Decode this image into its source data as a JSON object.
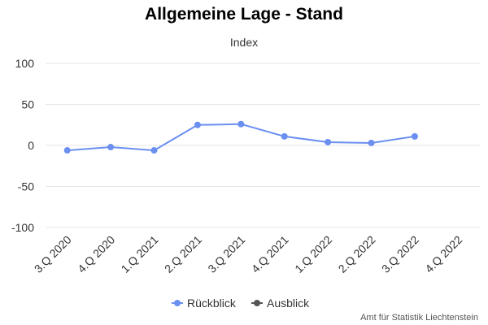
{
  "chart_data": {
    "type": "line",
    "title": "Allgemeine Lage - Stand",
    "subtitle": "Index",
    "categories": [
      "3.Q 2020",
      "4.Q 2020",
      "1.Q 2021",
      "2.Q 2021",
      "3.Q 2021",
      "4.Q 2021",
      "1.Q 2022",
      "2.Q 2022",
      "3.Q 2022",
      "4.Q 2022"
    ],
    "ylim": [
      -100,
      100
    ],
    "yticks": [
      100,
      50,
      0,
      -50,
      -100
    ],
    "grid": true,
    "legend_position": "bottom-center",
    "series": [
      {
        "name": "Rückblick",
        "color": "#6b8ff0",
        "values": [
          -6,
          -2,
          -6,
          25,
          26,
          11,
          4,
          3,
          11,
          null
        ]
      },
      {
        "name": "Ausblick",
        "color": "#555555",
        "values": [
          null,
          null,
          null,
          null,
          null,
          null,
          null,
          null,
          null,
          null
        ]
      }
    ]
  },
  "credits": "Amt für Statistik Liechtenstein"
}
